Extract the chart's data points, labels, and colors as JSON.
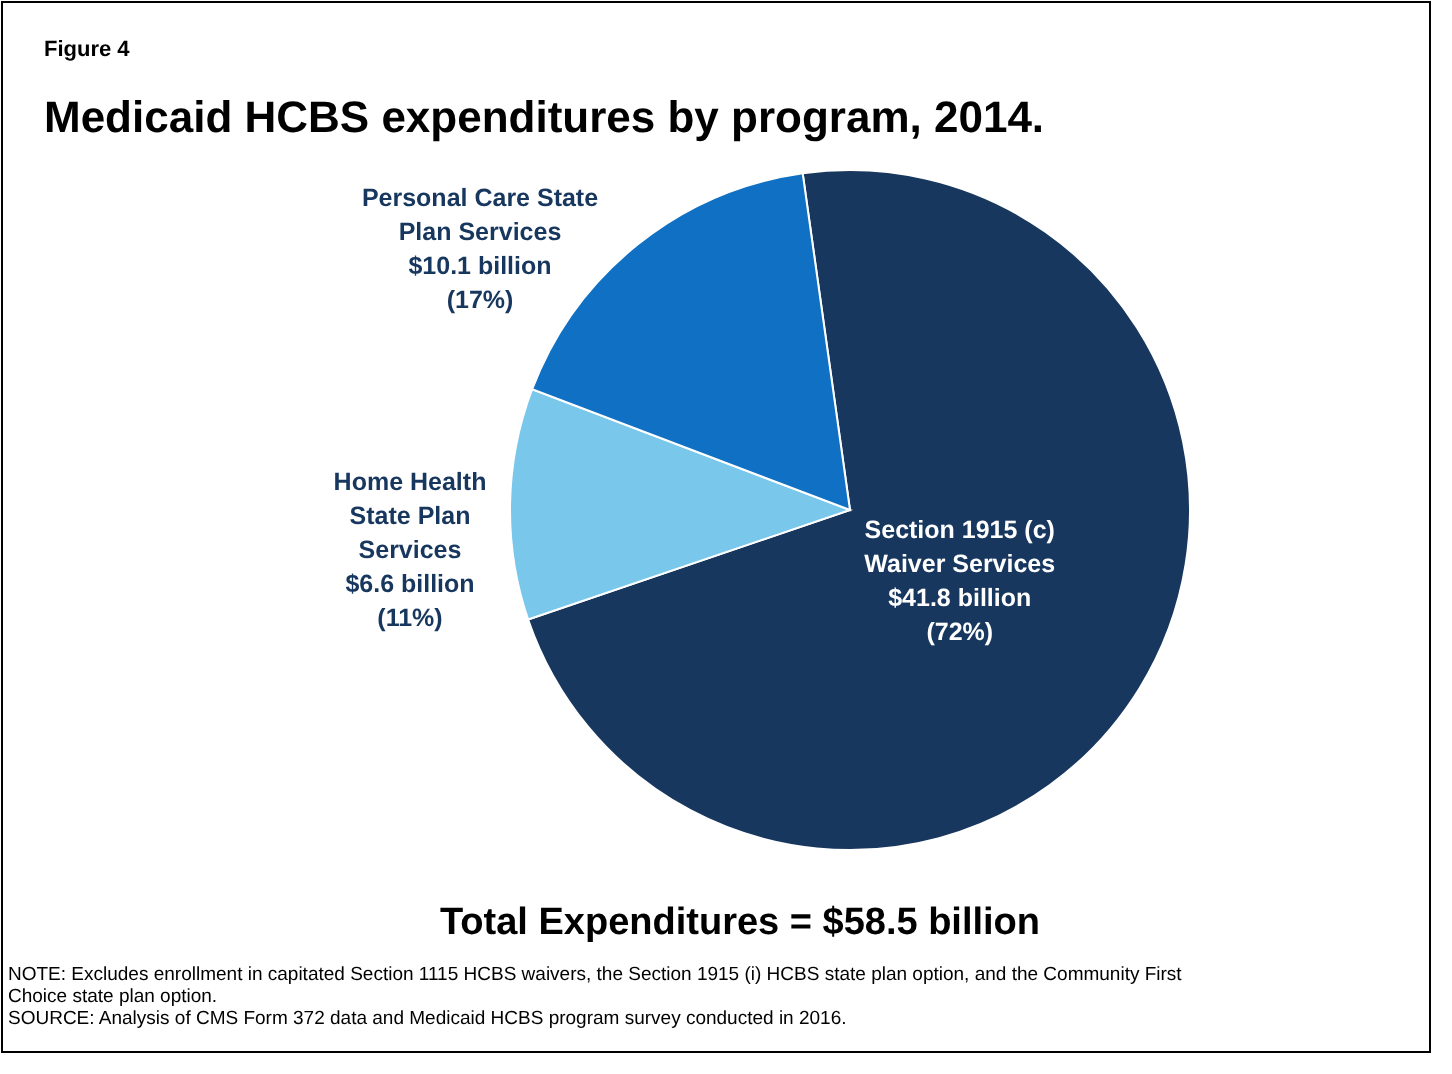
{
  "chart_data": {
    "type": "pie",
    "title": "Medicaid HCBS expenditures by program, 2014.",
    "categories": [
      "Section 1915 (c) Waiver Services",
      "Home Health State Plan Services",
      "Personal Care State Plan Services"
    ],
    "values": [
      72,
      11,
      17
    ],
    "colors": [
      "#17375e",
      "#7ac7ec",
      "#0f70c4"
    ],
    "value_labels": [
      "$41.8 billion\n(72%)",
      "$6.6 billion\n(11%)",
      "$10.1 billion\n(17%)"
    ],
    "annotations": [
      "Figure 4",
      "Total Expenditures = $58.5 billion",
      "NOTE: Excludes enrollment in capitated Section 1115 HCBS waivers, the Section 1915 (i) HCBS state plan option, and the Community First Choice state plan option.",
      "SOURCE: Analysis of CMS Form 372 data and Medicaid HCBS program survey conducted in 2016."
    ]
  }
}
